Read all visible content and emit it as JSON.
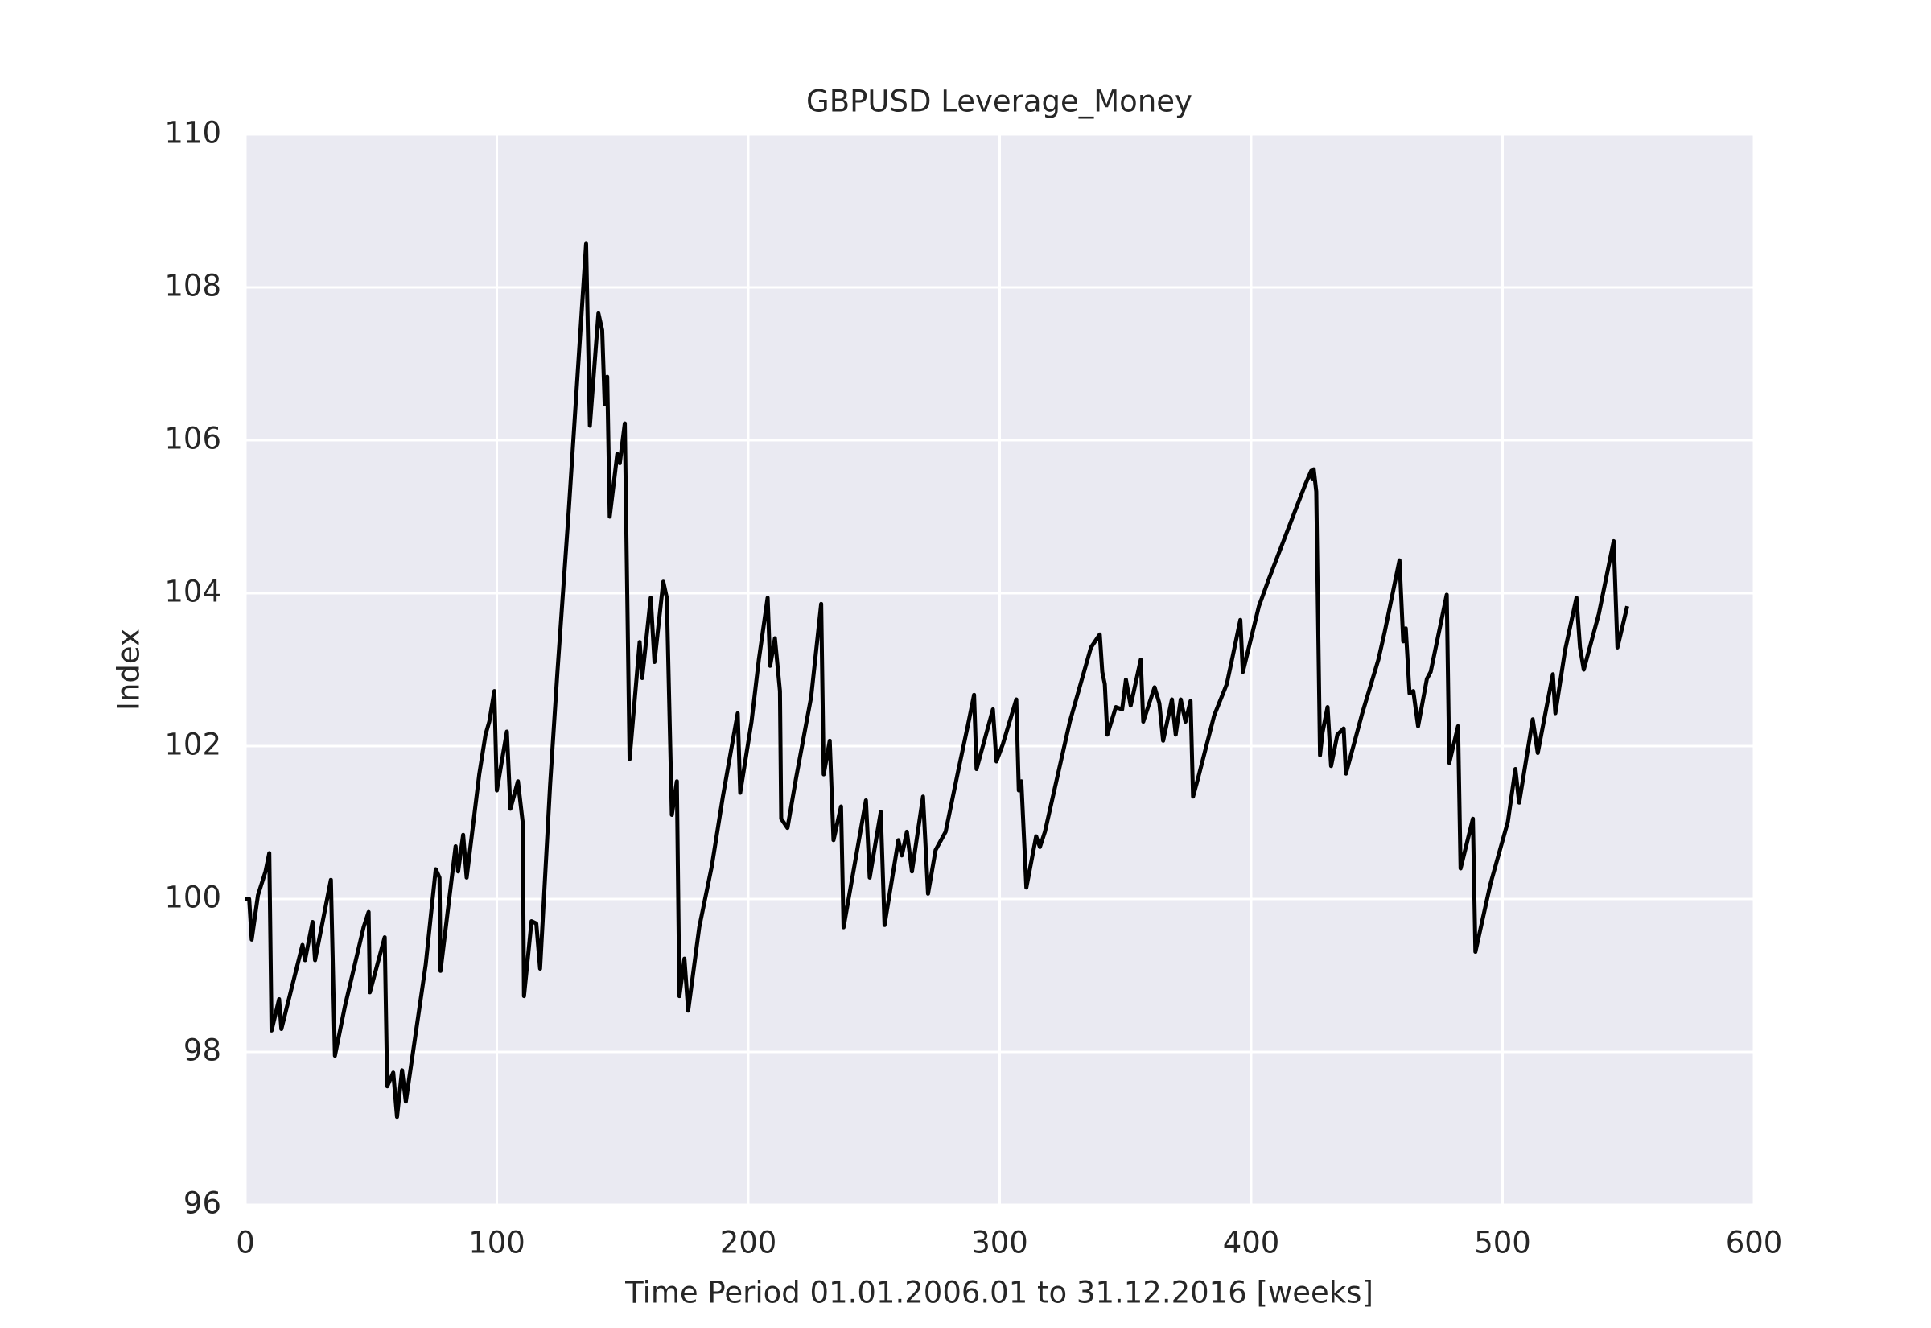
{
  "chart_data": {
    "type": "line",
    "title": "GBPUSD Leverage_Money",
    "xlabel": "Time Period 01.01.2006.01 to 31.12.2016 [weeks]",
    "ylabel": "Index",
    "xlim": [
      0,
      600
    ],
    "ylim": [
      96,
      110
    ],
    "xticks": [
      0,
      100,
      200,
      300,
      400,
      500,
      600
    ],
    "yticks": [
      96,
      98,
      100,
      102,
      104,
      106,
      108,
      110
    ],
    "grid": true,
    "background": "#eaeaf2",
    "grid_color": "#ffffff",
    "series": [
      {
        "color": "#000000",
        "x": [
          0,
          1.5,
          2.5,
          5,
          8,
          9.5,
          10.4,
          13.4,
          14.3,
          22.7,
          23.7,
          26.7,
          27.7,
          34,
          35.6,
          39.6,
          47,
          49,
          49.5,
          55.4,
          56.4,
          58.8,
          60.3,
          62.3,
          63.8,
          71.7,
          75.7,
          77.2,
          77.6,
          83.6,
          84.6,
          86.6,
          88,
          93,
          95.5,
          97,
          99,
          100,
          104,
          105.4,
          108.4,
          110.3,
          110.8,
          113.8,
          115.7,
          117.2,
          121.2,
          124.1,
          128.6,
          135.5,
          137,
          140.4,
          141.9,
          142.9,
          143.9,
          144.9,
          147.9,
          148.9,
          150.9,
          152.8,
          156.8,
          157.8,
          161.2,
          162.7,
          166.2,
          167.6,
          169.6,
          171.6,
          172.6,
          174.6,
          176.1,
          180.5,
          185.5,
          189.9,
          193.4,
          195.8,
          196.8,
          201.3,
          204.2,
          207.7,
          208.7,
          210.6,
          212.6,
          213.1,
          215.6,
          219,
          225,
          229,
          230,
          232.4,
          233.9,
          236.9,
          237.9,
          246.8,
          248.3,
          252.7,
          254.2,
          259.7,
          261.1,
          263.1,
          265.1,
          269.5,
          271.5,
          274.5,
          278.5,
          283.4,
          287.4,
          289.8,
          290.8,
          297.3,
          298.7,
          301.2,
          306.6,
          307.6,
          308.6,
          310.6,
          314.5,
          316,
          318,
          327.9,
          336.3,
          339.8,
          340.8,
          341.8,
          342.8,
          346.2,
          348.7,
          350.2,
          352.1,
          356.1,
          357.1,
          361.6,
          363.5,
          365,
          368.5,
          370,
          372,
          373.9,
          375.9,
          376.9,
          378.9,
          385.3,
          390.3,
          392.7,
          395.7,
          396.7,
          403.1,
          407.1,
          421.4,
          423.9,
          424.4,
          424.9,
          425.9,
          427.4,
          428.4,
          430.4,
          431.8,
          434.3,
          436.8,
          437.7,
          444.2,
          450.6,
          453.1,
          459,
          460.5,
          461.5,
          463,
          464.5,
          466.4,
          469.9,
          471.4,
          477.8,
          478.8,
          482.3,
          483.3,
          488.2,
          489.2,
          495.2,
          502.1,
          505.1,
          506.6,
          512,
          514,
          520,
          521,
          524.9,
          529.4,
          530.8,
          532.3,
          538.3,
          544.2,
          545.7,
          549.6
        ],
        "values": [
          100.0,
          100.0,
          99.47,
          100.05,
          100.36,
          100.6,
          98.28,
          98.69,
          98.3,
          99.4,
          99.2,
          99.7,
          99.2,
          100.25,
          97.95,
          98.6,
          99.63,
          99.83,
          98.78,
          99.5,
          97.55,
          97.73,
          97.15,
          97.76,
          97.35,
          99.14,
          100.39,
          100.28,
          99.06,
          100.69,
          100.36,
          100.84,
          100.28,
          101.63,
          102.15,
          102.32,
          102.72,
          101.42,
          102.19,
          101.18,
          101.54,
          101.0,
          98.73,
          99.71,
          99.68,
          99.09,
          101.5,
          102.97,
          105.08,
          108.57,
          106.19,
          107.66,
          107.44,
          106.47,
          106.83,
          105.0,
          105.82,
          105.7,
          106.22,
          101.83,
          103.36,
          102.89,
          103.94,
          103.1,
          104.15,
          103.94,
          101.1,
          101.54,
          98.73,
          99.22,
          98.54,
          99.63,
          100.43,
          101.34,
          101.99,
          102.43,
          101.39,
          102.32,
          103.13,
          103.94,
          103.05,
          103.41,
          102.72,
          101.05,
          100.93,
          101.58,
          102.64,
          103.86,
          101.63,
          102.07,
          100.77,
          101.21,
          99.63,
          101.29,
          100.28,
          101.14,
          99.66,
          100.77,
          100.57,
          100.88,
          100.36,
          101.34,
          100.07,
          100.64,
          100.88,
          101.66,
          102.28,
          102.67,
          101.7,
          102.48,
          101.8,
          102.02,
          102.61,
          101.42,
          101.54,
          100.15,
          100.82,
          100.68,
          100.88,
          102.32,
          103.29,
          103.46,
          102.97,
          102.81,
          102.15,
          102.51,
          102.48,
          102.87,
          102.53,
          103.13,
          102.32,
          102.77,
          102.56,
          102.07,
          102.61,
          102.15,
          102.61,
          102.32,
          102.59,
          101.34,
          101.58,
          102.4,
          102.81,
          103.18,
          103.65,
          102.97,
          103.83,
          104.19,
          105.41,
          105.6,
          105.49,
          105.62,
          105.33,
          101.88,
          102.18,
          102.51,
          101.74,
          102.15,
          102.23,
          101.64,
          102.43,
          103.13,
          103.49,
          104.43,
          103.37,
          103.54,
          102.69,
          102.72,
          102.26,
          102.88,
          102.97,
          103.98,
          101.78,
          102.26,
          100.4,
          101.05,
          99.31,
          100.2,
          101.01,
          101.7,
          101.26,
          102.35,
          101.91,
          102.94,
          102.43,
          103.26,
          103.94,
          103.29,
          103.0,
          103.73,
          104.68,
          103.29,
          103.83
        ]
      }
    ]
  }
}
